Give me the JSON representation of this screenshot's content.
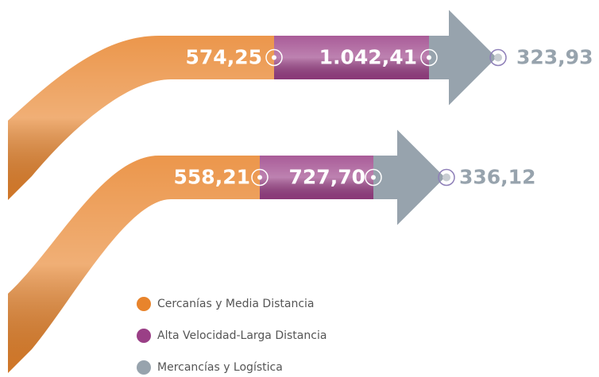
{
  "arrows": [
    {
      "segments": [
        "574,25",
        "1.042,41",
        "323,93"
      ]
    },
    {
      "segments": [
        "558,21",
        "727,70",
        "336,12"
      ]
    }
  ],
  "legend": [
    {
      "label": "Cercanías y Media Distancia",
      "color": "#e8842c"
    },
    {
      "label": "Alta Velocidad-Larga Distancia",
      "color": "#9a3f86"
    },
    {
      "label": "Mercancías y Logística",
      "color": "#97a3ad"
    }
  ]
}
